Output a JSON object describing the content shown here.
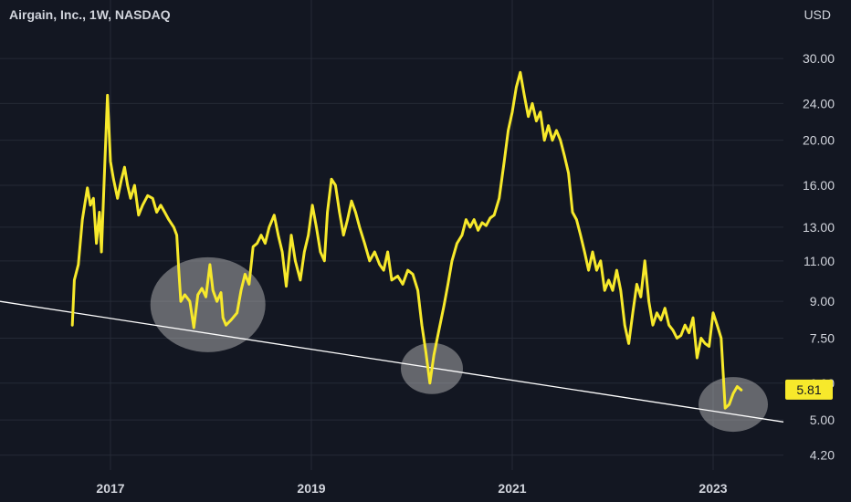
{
  "header": {
    "title": "Airgain, Inc., 1W, NASDAQ",
    "currency": "USD"
  },
  "colors": {
    "background": "#131722",
    "price_line": "#f7e92b",
    "trend_line": "#ffffff",
    "grid": "#252a36",
    "highlight": "#c8c8c8"
  },
  "chart_data": {
    "type": "line",
    "title": "Airgain, Inc., 1W, NASDAQ",
    "xlabel": "",
    "ylabel": "USD",
    "y_scale": "log",
    "ylim": [
      3.9,
      35
    ],
    "y_ticks": [
      4.2,
      5.0,
      6.0,
      7.5,
      9.0,
      11.0,
      13.0,
      16.0,
      20.0,
      24.0,
      30.0
    ],
    "y_tick_labels": [
      "4.20",
      "5.00",
      "6.00",
      "7.50",
      "9.00",
      "11.00",
      "13.00",
      "16.00",
      "20.00",
      "24.00",
      "30.00"
    ],
    "x_ticks": [
      2017,
      2019,
      2021,
      2023
    ],
    "x_tick_labels": [
      "2017",
      "2019",
      "2021",
      "2023"
    ],
    "xlim": [
      2015.9,
      2023.7
    ],
    "grid": true,
    "last_value": 5.81,
    "last_value_label": "5.81",
    "series": [
      {
        "values": [
          [
            2016.62,
            8.0
          ],
          [
            2016.64,
            10.0
          ],
          [
            2016.68,
            10.8
          ],
          [
            2016.72,
            13.5
          ],
          [
            2016.77,
            15.8
          ],
          [
            2016.8,
            14.5
          ],
          [
            2016.83,
            15.0
          ],
          [
            2016.86,
            12.0
          ],
          [
            2016.89,
            14.0
          ],
          [
            2016.91,
            11.5
          ],
          [
            2016.94,
            17.0
          ],
          [
            2016.97,
            25.0
          ],
          [
            2017.0,
            18.0
          ],
          [
            2017.03,
            16.5
          ],
          [
            2017.07,
            15.0
          ],
          [
            2017.11,
            16.5
          ],
          [
            2017.14,
            17.5
          ],
          [
            2017.17,
            16.0
          ],
          [
            2017.2,
            15.0
          ],
          [
            2017.24,
            16.0
          ],
          [
            2017.28,
            13.8
          ],
          [
            2017.32,
            14.5
          ],
          [
            2017.37,
            15.2
          ],
          [
            2017.42,
            15.0
          ],
          [
            2017.46,
            14.0
          ],
          [
            2017.5,
            14.5
          ],
          [
            2017.54,
            14.0
          ],
          [
            2017.58,
            13.5
          ],
          [
            2017.63,
            13.0
          ],
          [
            2017.66,
            12.5
          ],
          [
            2017.68,
            10.5
          ],
          [
            2017.7,
            9.0
          ],
          [
            2017.74,
            9.3
          ],
          [
            2017.79,
            9.0
          ],
          [
            2017.83,
            7.9
          ],
          [
            2017.87,
            9.3
          ],
          [
            2017.91,
            9.6
          ],
          [
            2017.95,
            9.2
          ],
          [
            2017.99,
            10.8
          ],
          [
            2018.02,
            9.5
          ],
          [
            2018.06,
            9.0
          ],
          [
            2018.1,
            9.4
          ],
          [
            2018.12,
            8.3
          ],
          [
            2018.15,
            8.0
          ],
          [
            2018.2,
            8.2
          ],
          [
            2018.26,
            8.5
          ],
          [
            2018.3,
            9.5
          ],
          [
            2018.34,
            10.3
          ],
          [
            2018.38,
            9.8
          ],
          [
            2018.42,
            11.8
          ],
          [
            2018.46,
            12.0
          ],
          [
            2018.5,
            12.5
          ],
          [
            2018.54,
            12.0
          ],
          [
            2018.58,
            13.0
          ],
          [
            2018.63,
            13.8
          ],
          [
            2018.67,
            12.5
          ],
          [
            2018.71,
            11.5
          ],
          [
            2018.75,
            9.7
          ],
          [
            2018.8,
            12.5
          ],
          [
            2018.84,
            11.0
          ],
          [
            2018.89,
            10.0
          ],
          [
            2018.93,
            11.5
          ],
          [
            2018.97,
            12.5
          ],
          [
            2019.01,
            14.5
          ],
          [
            2019.05,
            13.0
          ],
          [
            2019.09,
            11.5
          ],
          [
            2019.13,
            11.0
          ],
          [
            2019.16,
            14.0
          ],
          [
            2019.2,
            16.5
          ],
          [
            2019.24,
            16.0
          ],
          [
            2019.28,
            14.0
          ],
          [
            2019.32,
            12.5
          ],
          [
            2019.36,
            13.5
          ],
          [
            2019.4,
            14.8
          ],
          [
            2019.44,
            14.0
          ],
          [
            2019.48,
            13.0
          ],
          [
            2019.53,
            12.0
          ],
          [
            2019.58,
            11.0
          ],
          [
            2019.63,
            11.5
          ],
          [
            2019.68,
            10.8
          ],
          [
            2019.72,
            10.5
          ],
          [
            2019.76,
            11.5
          ],
          [
            2019.8,
            10.0
          ],
          [
            2019.86,
            10.2
          ],
          [
            2019.91,
            9.8
          ],
          [
            2019.96,
            10.5
          ],
          [
            2020.01,
            10.3
          ],
          [
            2020.06,
            9.5
          ],
          [
            2020.1,
            8.0
          ],
          [
            2020.14,
            7.0
          ],
          [
            2020.18,
            6.0
          ],
          [
            2020.22,
            6.9
          ],
          [
            2020.27,
            7.8
          ],
          [
            2020.32,
            8.8
          ],
          [
            2020.36,
            9.8
          ],
          [
            2020.4,
            11.0
          ],
          [
            2020.45,
            12.0
          ],
          [
            2020.5,
            12.5
          ],
          [
            2020.54,
            13.5
          ],
          [
            2020.58,
            13.0
          ],
          [
            2020.62,
            13.5
          ],
          [
            2020.66,
            12.8
          ],
          [
            2020.7,
            13.3
          ],
          [
            2020.74,
            13.1
          ],
          [
            2020.78,
            13.6
          ],
          [
            2020.82,
            13.8
          ],
          [
            2020.87,
            15.0
          ],
          [
            2020.92,
            18.0
          ],
          [
            2020.96,
            21.0
          ],
          [
            2021.0,
            23.0
          ],
          [
            2021.04,
            26.0
          ],
          [
            2021.08,
            28.0
          ],
          [
            2021.12,
            25.0
          ],
          [
            2021.16,
            22.5
          ],
          [
            2021.2,
            24.0
          ],
          [
            2021.24,
            22.0
          ],
          [
            2021.28,
            23.0
          ],
          [
            2021.32,
            20.0
          ],
          [
            2021.36,
            21.5
          ],
          [
            2021.4,
            20.0
          ],
          [
            2021.44,
            21.0
          ],
          [
            2021.48,
            20.0
          ],
          [
            2021.52,
            18.5
          ],
          [
            2021.56,
            17.0
          ],
          [
            2021.6,
            14.0
          ],
          [
            2021.64,
            13.5
          ],
          [
            2021.68,
            12.5
          ],
          [
            2021.72,
            11.5
          ],
          [
            2021.76,
            10.5
          ],
          [
            2021.8,
            11.5
          ],
          [
            2021.84,
            10.5
          ],
          [
            2021.88,
            11.0
          ],
          [
            2021.92,
            9.5
          ],
          [
            2021.96,
            10.0
          ],
          [
            2022.0,
            9.5
          ],
          [
            2022.04,
            10.5
          ],
          [
            2022.08,
            9.5
          ],
          [
            2022.12,
            8.0
          ],
          [
            2022.16,
            7.3
          ],
          [
            2022.2,
            8.5
          ],
          [
            2022.24,
            9.8
          ],
          [
            2022.28,
            9.2
          ],
          [
            2022.32,
            11.0
          ],
          [
            2022.36,
            9.0
          ],
          [
            2022.4,
            8.0
          ],
          [
            2022.44,
            8.5
          ],
          [
            2022.48,
            8.2
          ],
          [
            2022.52,
            8.7
          ],
          [
            2022.56,
            8.0
          ],
          [
            2022.6,
            7.8
          ],
          [
            2022.64,
            7.5
          ],
          [
            2022.68,
            7.6
          ],
          [
            2022.72,
            8.0
          ],
          [
            2022.76,
            7.7
          ],
          [
            2022.8,
            8.3
          ],
          [
            2022.84,
            6.8
          ],
          [
            2022.88,
            7.5
          ],
          [
            2022.92,
            7.3
          ],
          [
            2022.96,
            7.2
          ],
          [
            2023.0,
            8.5
          ],
          [
            2023.04,
            8.0
          ],
          [
            2023.08,
            7.5
          ],
          [
            2023.12,
            5.3
          ],
          [
            2023.16,
            5.4
          ],
          [
            2023.2,
            5.7
          ],
          [
            2023.24,
            5.9
          ],
          [
            2023.28,
            5.8
          ]
        ]
      }
    ],
    "trend_line": {
      "start": [
        2015.9,
        9.0
      ],
      "end": [
        2023.7,
        4.95
      ]
    },
    "highlights": [
      {
        "center": [
          2017.97,
          8.85
        ]
      },
      {
        "center": [
          2020.2,
          6.45
        ]
      },
      {
        "center": [
          2023.2,
          5.4
        ]
      }
    ]
  }
}
